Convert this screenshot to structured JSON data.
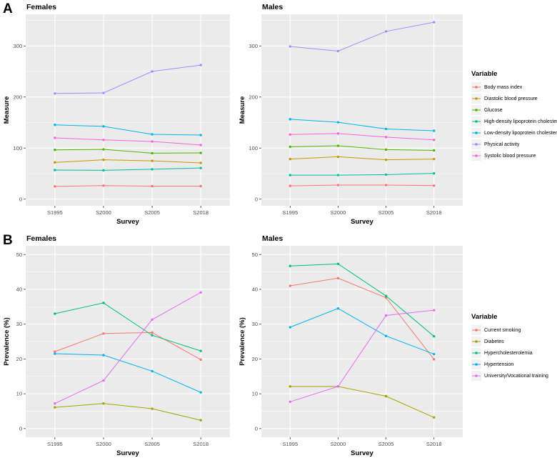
{
  "panels": [
    {
      "label": "A",
      "legend": {
        "title": "Variable",
        "entries": [
          {
            "label": "Body mass index",
            "color": "#F8766D"
          },
          {
            "label": "Diastolic blood pressure",
            "color": "#C49A00"
          },
          {
            "label": "Glucose",
            "color": "#53B400"
          },
          {
            "label": "High-density lipoprotein cholesterol",
            "color": "#00C094"
          },
          {
            "label": "Low-density lipoprotein cholesterol",
            "color": "#00B6EB"
          },
          {
            "label": "Physical activity",
            "color": "#A58AFF"
          },
          {
            "label": "Systolic blood pressure",
            "color": "#FB61D7"
          }
        ]
      }
    },
    {
      "label": "B",
      "legend": {
        "title": "Variable",
        "entries": [
          {
            "label": "Current smoking",
            "color": "#F8766D"
          },
          {
            "label": "Diabetes",
            "color": "#A3A500"
          },
          {
            "label": "Hypercholesterolemia",
            "color": "#00BF7D"
          },
          {
            "label": "Hypertension",
            "color": "#00B0F6"
          },
          {
            "label": "University/Vocational training",
            "color": "#E76BF3"
          }
        ]
      }
    }
  ],
  "style": {
    "panel_background": "#EBEBEB",
    "gridline_color": "#FFFFFF",
    "tick_label_color": "#4D4D4D",
    "axis_title_color": "#000000"
  },
  "chart_data": [
    {
      "id": "A-females",
      "panel": "A",
      "type": "line",
      "title": "Females",
      "xlabel": "Survey",
      "ylabel": "Measure",
      "categories": [
        "S1995",
        "S2000",
        "S2005",
        "S2018"
      ],
      "ylim": [
        -13,
        362
      ],
      "y_major_ticks": [
        0,
        100,
        200,
        300
      ],
      "y_minor_ticks": [
        50,
        150,
        250,
        350
      ],
      "grid": true,
      "legend_position": "right",
      "series": [
        {
          "name": "Body mass index",
          "color": "#F8766D",
          "values": [
            25,
            26.5,
            25.5,
            25.5
          ]
        },
        {
          "name": "Diastolic blood pressure",
          "color": "#C49A00",
          "values": [
            72,
            77,
            75,
            71
          ]
        },
        {
          "name": "Glucose",
          "color": "#53B400",
          "values": [
            96.5,
            97.5,
            90,
            90.5
          ]
        },
        {
          "name": "High-density lipoprotein cholesterol",
          "color": "#00C094",
          "values": [
            57,
            56.5,
            58.5,
            61
          ]
        },
        {
          "name": "Low-density lipoprotein cholesterol",
          "color": "#00B6EB",
          "values": [
            145.5,
            142.5,
            127,
            125.5
          ]
        },
        {
          "name": "Physical activity",
          "color": "#A58AFF",
          "values": [
            207,
            208,
            250,
            262.5
          ]
        },
        {
          "name": "Systolic blood pressure",
          "color": "#FB61D7",
          "values": [
            120,
            116,
            113,
            106
          ]
        }
      ]
    },
    {
      "id": "A-males",
      "panel": "A",
      "type": "line",
      "title": "Males",
      "xlabel": "Survey",
      "ylabel": "Measure",
      "categories": [
        "S1995",
        "S2000",
        "S2005",
        "S2018"
      ],
      "ylim": [
        -13,
        362
      ],
      "y_major_ticks": [
        0,
        100,
        200,
        300
      ],
      "y_minor_ticks": [
        50,
        150,
        250,
        350
      ],
      "grid": true,
      "legend_position": "right",
      "series": [
        {
          "name": "Body mass index",
          "color": "#F8766D",
          "values": [
            26,
            27.5,
            27.5,
            26.5
          ]
        },
        {
          "name": "Diastolic blood pressure",
          "color": "#C49A00",
          "values": [
            78.5,
            83,
            77,
            78.5
          ]
        },
        {
          "name": "Glucose",
          "color": "#53B400",
          "values": [
            102.5,
            104.5,
            97,
            95.5
          ]
        },
        {
          "name": "High-density lipoprotein cholesterol",
          "color": "#00C094",
          "values": [
            47,
            47,
            48,
            50.5
          ]
        },
        {
          "name": "Low-density lipoprotein cholesterol",
          "color": "#00B6EB",
          "values": [
            156.5,
            150.5,
            137.5,
            134
          ]
        },
        {
          "name": "Physical activity",
          "color": "#A58AFF",
          "values": [
            299,
            290,
            328.5,
            346.5
          ]
        },
        {
          "name": "Systolic blood pressure",
          "color": "#FB61D7",
          "values": [
            126.5,
            128.5,
            121.5,
            116
          ]
        }
      ]
    },
    {
      "id": "B-females",
      "panel": "B",
      "type": "line",
      "title": "Females",
      "xlabel": "Survey",
      "ylabel": "Prevalence (%)",
      "categories": [
        "S1995",
        "S2000",
        "S2005",
        "S2018"
      ],
      "ylim": [
        -2.5,
        52.5
      ],
      "y_major_ticks": [
        0,
        10,
        20,
        30,
        40,
        50
      ],
      "y_minor_ticks": [
        5,
        15,
        25,
        35,
        45
      ],
      "grid": true,
      "legend_position": "right",
      "series": [
        {
          "name": "Current smoking",
          "color": "#F8766D",
          "values": [
            22.1,
            27.3,
            27.6,
            19.8
          ]
        },
        {
          "name": "Diabetes",
          "color": "#A3A500",
          "values": [
            6.1,
            7.2,
            5.7,
            2.4
          ]
        },
        {
          "name": "Hypercholesterolemia",
          "color": "#00BF7D",
          "values": [
            33,
            36.1,
            26.8,
            22.3
          ]
        },
        {
          "name": "Hypertension",
          "color": "#00B0F6",
          "values": [
            21.5,
            21.1,
            16.5,
            10.4
          ]
        },
        {
          "name": "University/Vocational training",
          "color": "#E76BF3",
          "values": [
            7.2,
            13.8,
            31.3,
            39.1
          ]
        }
      ]
    },
    {
      "id": "B-males",
      "panel": "B",
      "type": "line",
      "title": "Males",
      "xlabel": "Survey",
      "ylabel": "Prevalence (%)",
      "categories": [
        "S1995",
        "S2000",
        "S2005",
        "S2018"
      ],
      "ylim": [
        -2.5,
        52.5
      ],
      "y_major_ticks": [
        0,
        10,
        20,
        30,
        40,
        50
      ],
      "y_minor_ticks": [
        5,
        15,
        25,
        35,
        45
      ],
      "grid": true,
      "legend_position": "right",
      "series": [
        {
          "name": "Current smoking",
          "color": "#F8766D",
          "values": [
            41,
            43.2,
            37.6,
            19.9
          ]
        },
        {
          "name": "Diabetes",
          "color": "#A3A500",
          "values": [
            12.1,
            12.1,
            9.3,
            3.2
          ]
        },
        {
          "name": "Hypercholesterolemia",
          "color": "#00BF7D",
          "values": [
            46.7,
            47.3,
            38.1,
            26.5
          ]
        },
        {
          "name": "Hypertension",
          "color": "#00B0F6",
          "values": [
            29.1,
            34.5,
            26.6,
            21.4
          ]
        },
        {
          "name": "University/Vocational training",
          "color": "#E76BF3",
          "values": [
            7.7,
            12.1,
            32.5,
            34
          ]
        }
      ]
    }
  ]
}
